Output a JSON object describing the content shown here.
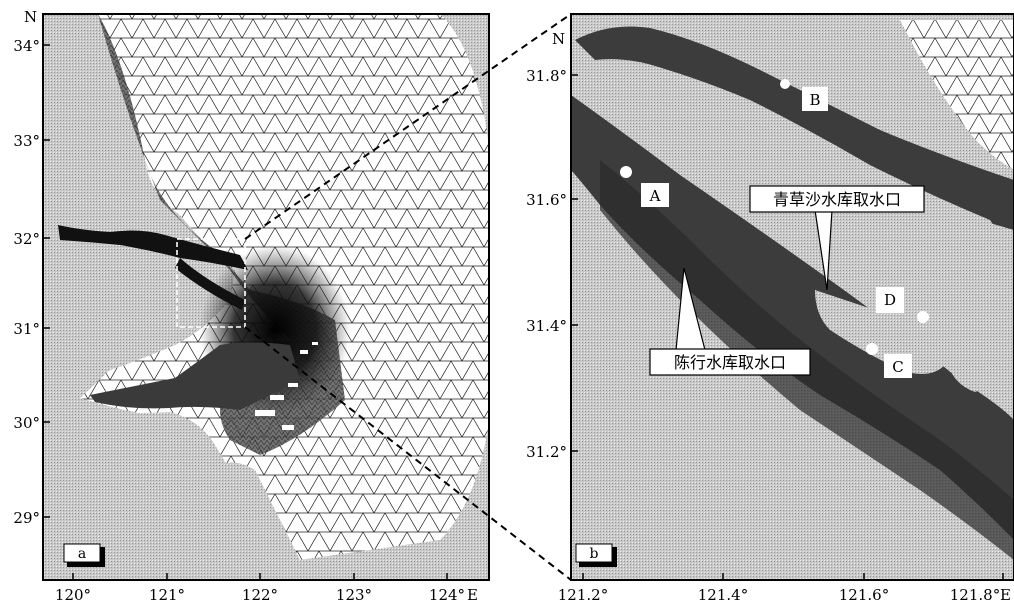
{
  "panel_a": {
    "label": "a",
    "north": "N",
    "east": "E",
    "lat_ticks": [
      "34°",
      "33°",
      "32°",
      "31°",
      "30°",
      "29°"
    ],
    "lon_ticks": [
      "120°",
      "121°",
      "122°",
      "123°",
      "124°"
    ]
  },
  "panel_b": {
    "label": "b",
    "north": "N",
    "east": "E",
    "lat_ticks": [
      "31.8°",
      "31.6°",
      "31.4°",
      "31.2°"
    ],
    "lon_ticks": [
      "121.2°",
      "121.4°",
      "121.6°",
      "121.8°"
    ],
    "points": [
      "A",
      "B",
      "C",
      "D"
    ],
    "annotations": [
      "青草沙水库取水口",
      "陈行水库取水口"
    ]
  },
  "colors": {
    "land": "#c4c4c4",
    "water": "#444444",
    "mesh": "#111111",
    "frame": "#000000"
  }
}
